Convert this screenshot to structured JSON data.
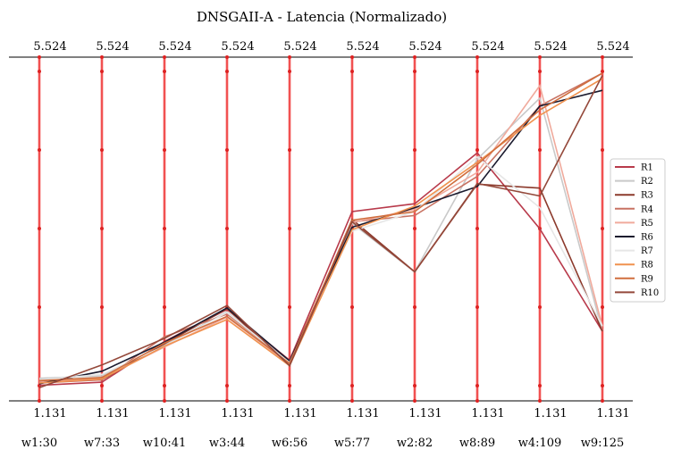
{
  "chart_data": {
    "type": "line",
    "title": "DNSGAII-A - Latencia (Normalizado)",
    "categories": [
      "w1:30",
      "w7:33",
      "w10:41",
      "w3:44",
      "w6:56",
      "w5:77",
      "w2:82",
      "w8:89",
      "w4:109",
      "w9:125"
    ],
    "top_labels": [
      "5.524",
      "5.524",
      "5.524",
      "5.524",
      "5.524",
      "5.524",
      "5.524",
      "5.524",
      "5.524",
      "5.524"
    ],
    "bottom_labels": [
      "1.131",
      "1.131",
      "1.131",
      "1.131",
      "1.131",
      "1.131",
      "1.131",
      "1.131",
      "1.131",
      "1.131"
    ],
    "ylim": [
      1.131,
      5.524
    ],
    "grid": false,
    "legend_placement": "right",
    "axis_color": "#ee3333",
    "series": [
      {
        "name": "R1",
        "color": "#b83a4b",
        "values": [
          1.33,
          1.37,
          1.89,
          2.3,
          1.65,
          3.55,
          3.65,
          4.3,
          3.33,
          2.02
        ]
      },
      {
        "name": "R2",
        "color": "#c9c9c9",
        "values": [
          1.42,
          1.45,
          1.84,
          2.27,
          1.6,
          3.4,
          2.78,
          4.22,
          5.0,
          2.02
        ]
      },
      {
        "name": "R3",
        "color": "#8c3a2c",
        "values": [
          1.38,
          1.4,
          1.86,
          2.31,
          1.58,
          3.45,
          2.78,
          3.9,
          3.85,
          2.02
        ]
      },
      {
        "name": "R4",
        "color": "#c87262",
        "values": [
          1.36,
          1.4,
          1.95,
          2.24,
          1.63,
          3.42,
          3.5,
          4.0,
          4.9,
          5.32
        ]
      },
      {
        "name": "R5",
        "color": "#f0aa9c",
        "values": [
          1.37,
          1.42,
          1.82,
          2.2,
          1.6,
          3.41,
          3.58,
          4.05,
          5.16,
          2.08
        ]
      },
      {
        "name": "R6",
        "color": "#1a1a2e",
        "values": [
          1.35,
          1.51,
          1.88,
          2.32,
          1.64,
          3.35,
          3.6,
          3.87,
          4.9,
          5.1
        ]
      },
      {
        "name": "R7",
        "color": "#e6e6e6",
        "values": [
          1.4,
          1.47,
          1.83,
          2.26,
          1.62,
          3.3,
          3.55,
          4.25,
          3.6,
          2.09
        ]
      },
      {
        "name": "R8",
        "color": "#f0924f",
        "values": [
          1.36,
          1.41,
          1.83,
          2.17,
          1.58,
          3.32,
          3.62,
          4.18,
          4.78,
          5.25
        ]
      },
      {
        "name": "R9",
        "color": "#d06e3e",
        "values": [
          1.39,
          1.43,
          1.87,
          2.21,
          1.61,
          3.44,
          3.55,
          4.15,
          4.85,
          5.32
        ]
      },
      {
        "name": "R10",
        "color": "#94483a",
        "values": [
          1.3,
          1.59,
          1.93,
          2.35,
          1.58,
          3.42,
          2.78,
          3.91,
          3.75,
          5.29
        ]
      }
    ]
  }
}
